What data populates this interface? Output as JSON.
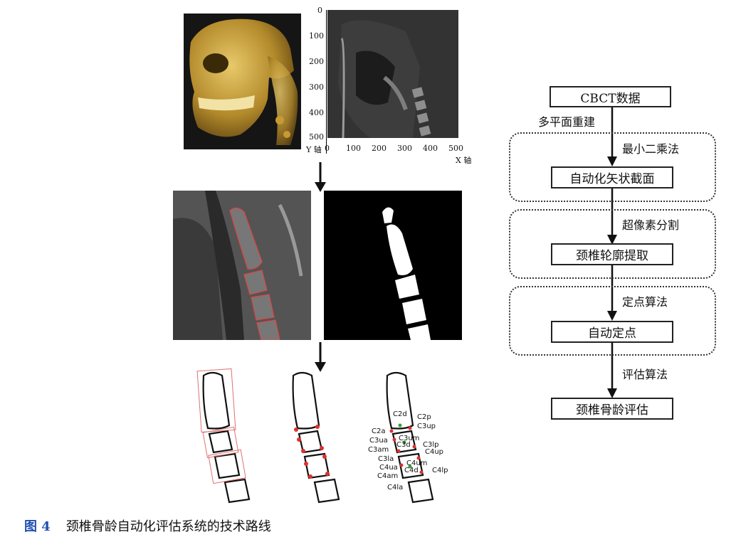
{
  "top_plot": {
    "y_ticks": [
      "0",
      "100",
      "200",
      "300",
      "400",
      "500"
    ],
    "x_ticks": [
      "0",
      "100",
      "200",
      "300",
      "400",
      "500"
    ],
    "y_label": "Y 轴",
    "x_label": "X 轴"
  },
  "landmarks": {
    "c2d": "C2d",
    "c2p": "C2p",
    "c3up": "C3up",
    "c2a": "C2a",
    "c3ua": "C3ua",
    "c3um": "C3um",
    "c3d": "C3d",
    "c3am": "C3am",
    "c3lp": "C3lp",
    "c4up": "C4up",
    "c3la": "C3la",
    "c4um": "C4um",
    "c4ua": "C4ua",
    "c4d": "C4d",
    "c4lp": "C4lp",
    "c4am": "C4am",
    "c4la": "C4la"
  },
  "flowchart": {
    "steps": [
      "CBCT数据",
      "自动化矢状截面",
      "颈椎轮廓提取",
      "自动定点",
      "颈椎骨龄评估"
    ],
    "edges": [
      "多平面重建",
      "最小二乘法",
      "超像素分割",
      "定点算法",
      "评估算法"
    ]
  },
  "caption": {
    "number": "图 4",
    "text": "颈椎骨龄自动化评估系统的技术路线"
  }
}
